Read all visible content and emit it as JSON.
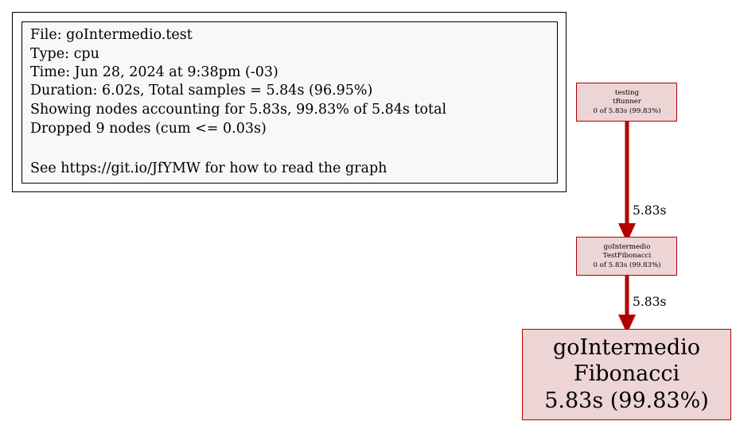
{
  "legend": {
    "file": "File: goIntermedio.test",
    "type": "Type: cpu",
    "time": "Time: Jun 28, 2024 at 9:38pm (-03)",
    "duration": "Duration: 6.02s, Total samples = 5.84s (96.95%)",
    "showing": "Showing nodes accounting for 5.83s, 99.83% of 5.84s total",
    "dropped": "Dropped 9 nodes (cum <= 0.03s)",
    "see": "See https://git.io/JfYMW for how to read the graph"
  },
  "nodes": {
    "runner": {
      "package": "testing",
      "function": "tRunner",
      "stats": "0 of 5.83s (99.83%)"
    },
    "test_fib": {
      "package": "goIntermedio",
      "function": "TestFibonacci",
      "stats": "0 of 5.83s (99.83%)"
    },
    "fib": {
      "package": "goIntermedio",
      "function": "Fibonacci",
      "stats": "5.83s (99.83%)"
    }
  },
  "edges": {
    "runner_to_test": "5.83s",
    "test_to_fib": "5.83s"
  },
  "colors": {
    "node_fill": "#edd5d5",
    "node_border": "#b20000",
    "edge": "#b20000",
    "legend_fill": "#f8f8f8"
  }
}
